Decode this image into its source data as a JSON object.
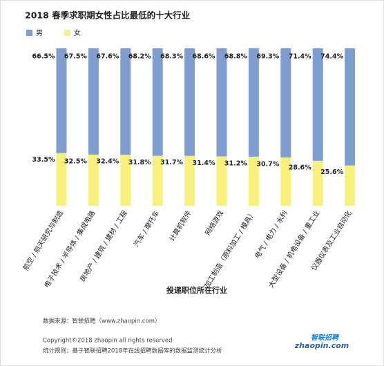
{
  "chart_data": {
    "type": "stacked_bar",
    "title": "2018 春季求职期女性占比最低的十大行业",
    "categories": [
      "航空 / 航天研究与制造",
      "电子技术 / 半导体 / 集成电路",
      "房地产 / 建筑 / 建材 / 工程",
      "汽车 / 摩托车",
      "计算机软件",
      "网络游戏",
      "加工制造（原料加工 / 模具）",
      "电气 / 电力 / 水利",
      "大型设备 / 机电设备 / 重工业",
      "仪器仪表及工业自动化"
    ],
    "series": [
      {
        "name": "男",
        "color": "#7f9dcf",
        "values": [
          66.5,
          67.5,
          67.6,
          68.2,
          68.3,
          68.6,
          68.8,
          69.3,
          71.4,
          74.4
        ],
        "value_labels": [
          "66.5%",
          "67.5%",
          "67.6%",
          "68.2%",
          "68.3%",
          "68.6%",
          "68.8%",
          "69.3%",
          "71.4%",
          "74.4%"
        ]
      },
      {
        "name": "女",
        "color": "#f8f07c",
        "values": [
          33.5,
          32.5,
          32.4,
          31.8,
          31.7,
          31.4,
          31.2,
          30.7,
          28.6,
          25.6
        ],
        "value_labels": [
          "33.5%",
          "32.5%",
          "32.4%",
          "31.8%",
          "31.7%",
          "31.4%",
          "31.2%",
          "30.7%",
          "28.6%",
          "25.6%"
        ]
      }
    ],
    "ylim": [
      0,
      100
    ],
    "x_label": "投递职位所在行业"
  },
  "footer": {
    "source": "数据来源：智联招聘（www.zhaopin.com）",
    "copyright": "Copyright©2018 zhaopin all rights reserved",
    "rule": "统计规则：基于智联招聘2018年在线招聘数据库的数据监测统计分析",
    "logo_cn": "智联招聘",
    "logo_en": "zhaopin.com"
  }
}
